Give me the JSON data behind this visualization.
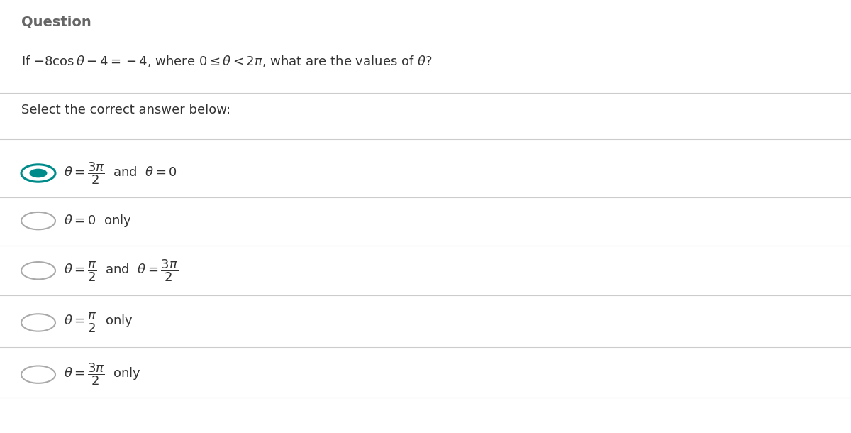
{
  "title": "Question",
  "bg_color": "#ffffff",
  "text_color": "#333333",
  "divider_color": "#cccccc",
  "selected_circle_color": "#008b8b",
  "unselected_circle_color": "#aaaaaa",
  "title_color": "#666666",
  "option_selected": [
    true,
    false,
    false,
    false,
    false
  ]
}
